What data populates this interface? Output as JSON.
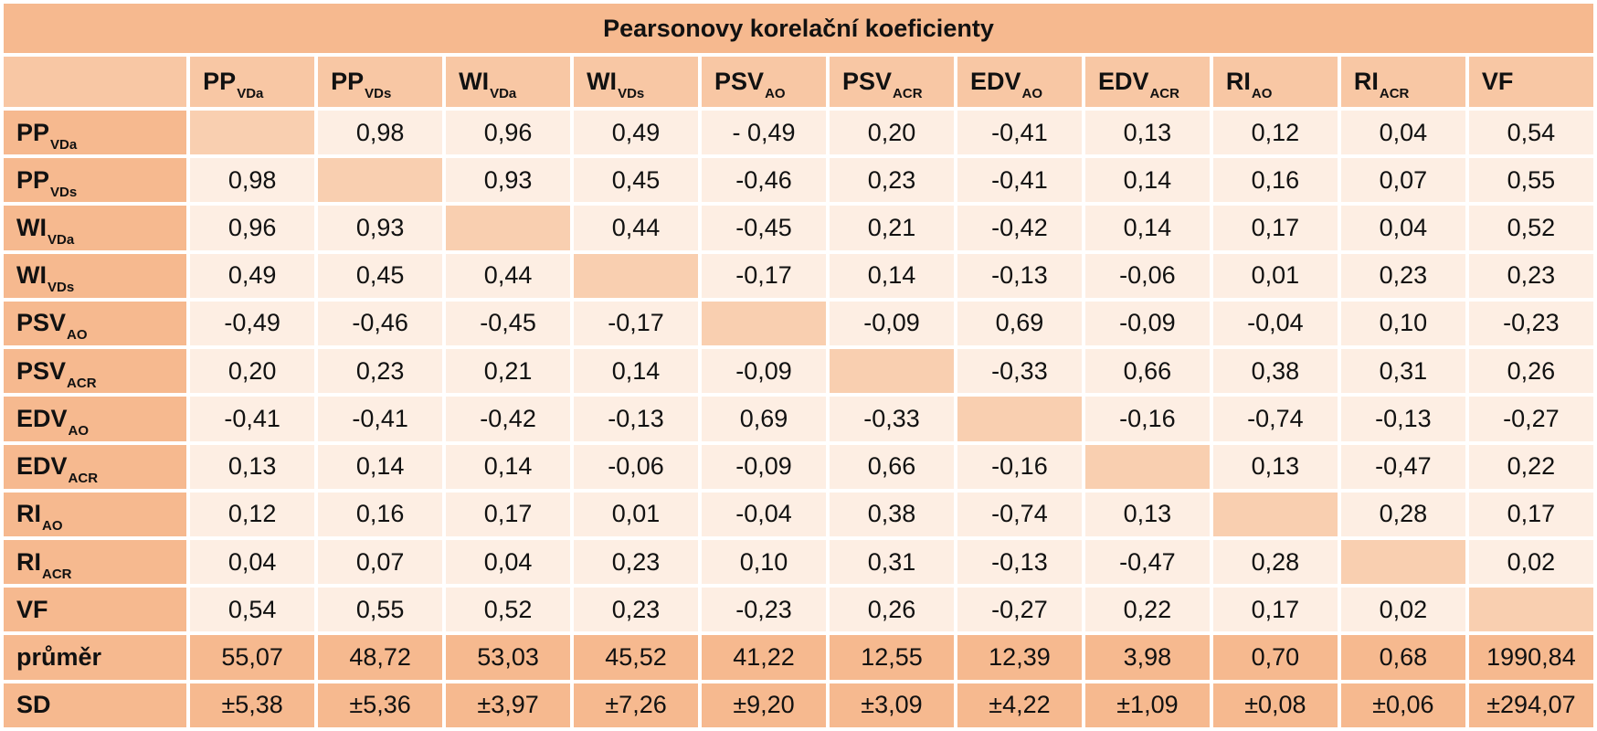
{
  "title": "Pearsonovy korelační koeficienty",
  "columns": [
    {
      "main": "PP",
      "sub": "VDa"
    },
    {
      "main": "PP",
      "sub": "VDs"
    },
    {
      "main": "WI",
      "sub": "VDa"
    },
    {
      "main": "WI",
      "sub": "VDs"
    },
    {
      "main": "PSV",
      "sub": "AO"
    },
    {
      "main": "PSV",
      "sub": "ACR"
    },
    {
      "main": "EDV",
      "sub": "AO"
    },
    {
      "main": "EDV",
      "sub": "ACR"
    },
    {
      "main": "RI",
      "sub": "AO"
    },
    {
      "main": "RI",
      "sub": "ACR"
    },
    {
      "main": "VF",
      "sub": ""
    }
  ],
  "rows": [
    {
      "main": "PP",
      "sub": "VDa",
      "values": [
        "",
        "0,98",
        "0,96",
        "0,49",
        "- 0,49",
        "0,20",
        "-0,41",
        "0,13",
        "0,12",
        "0,04",
        "0,54"
      ]
    },
    {
      "main": "PP",
      "sub": "VDs",
      "values": [
        "0,98",
        "",
        "0,93",
        "0,45",
        "-0,46",
        "0,23",
        "-0,41",
        "0,14",
        "0,16",
        "0,07",
        "0,55"
      ]
    },
    {
      "main": "WI",
      "sub": "VDa",
      "values": [
        "0,96",
        "0,93",
        "",
        "0,44",
        "-0,45",
        "0,21",
        "-0,42",
        "0,14",
        "0,17",
        "0,04",
        "0,52"
      ]
    },
    {
      "main": "WI",
      "sub": "VDs",
      "values": [
        "0,49",
        "0,45",
        "0,44",
        "",
        "-0,17",
        "0,14",
        "-0,13",
        "-0,06",
        "0,01",
        "0,23",
        "0,23"
      ]
    },
    {
      "main": "PSV",
      "sub": "AO",
      "values": [
        "-0,49",
        "-0,46",
        "-0,45",
        "-0,17",
        "",
        "-0,09",
        "0,69",
        "-0,09",
        "-0,04",
        "0,10",
        "-0,23"
      ]
    },
    {
      "main": "PSV",
      "sub": "ACR",
      "values": [
        "0,20",
        "0,23",
        "0,21",
        "0,14",
        "-0,09",
        "",
        "-0,33",
        "0,66",
        "0,38",
        "0,31",
        "0,26"
      ]
    },
    {
      "main": "EDV",
      "sub": "AO",
      "values": [
        "-0,41",
        "-0,41",
        "-0,42",
        "-0,13",
        "0,69",
        "-0,33",
        "",
        "-0,16",
        "-0,74",
        "-0,13",
        "-0,27"
      ]
    },
    {
      "main": "EDV",
      "sub": "ACR",
      "values": [
        "0,13",
        "0,14",
        "0,14",
        "-0,06",
        "-0,09",
        "0,66",
        "-0,16",
        "",
        "0,13",
        "-0,47",
        "0,22"
      ]
    },
    {
      "main": "RI",
      "sub": "AO",
      "values": [
        "0,12",
        "0,16",
        "0,17",
        "0,01",
        "-0,04",
        "0,38",
        "-0,74",
        "0,13",
        "",
        "0,28",
        "0,17"
      ]
    },
    {
      "main": "RI",
      "sub": "ACR",
      "values": [
        "0,04",
        "0,07",
        "0,04",
        "0,23",
        "0,10",
        "0,31",
        "-0,13",
        "-0,47",
        "0,28",
        "",
        "0,02"
      ]
    },
    {
      "main": "VF",
      "sub": "",
      "values": [
        "0,54",
        "0,55",
        "0,52",
        "0,23",
        "-0,23",
        "0,26",
        "-0,27",
        "0,22",
        "0,17",
        "0,02",
        ""
      ]
    }
  ],
  "summary": [
    {
      "label": "průměr",
      "values": [
        "55,07",
        "48,72",
        "53,03",
        "45,52",
        "41,22",
        "12,55",
        "12,39",
        "3,98",
        "0,70",
        "0,68",
        "1990,84"
      ]
    },
    {
      "label": "SD",
      "values": [
        "±5,38",
        "±5,36",
        "±3,97",
        "±7,26",
        "±9,20",
        "±3,09",
        "±4,22",
        "±1,09",
        "±0,08",
        "±0,06",
        "±294,07"
      ]
    }
  ],
  "colors": {
    "title_bg": "#f6b98f",
    "header_bg": "#f8c7a4",
    "cell_bg": "#fdeee3",
    "diagonal_bg": "#f9cfb0",
    "summary_bg": "#f6b98f"
  }
}
